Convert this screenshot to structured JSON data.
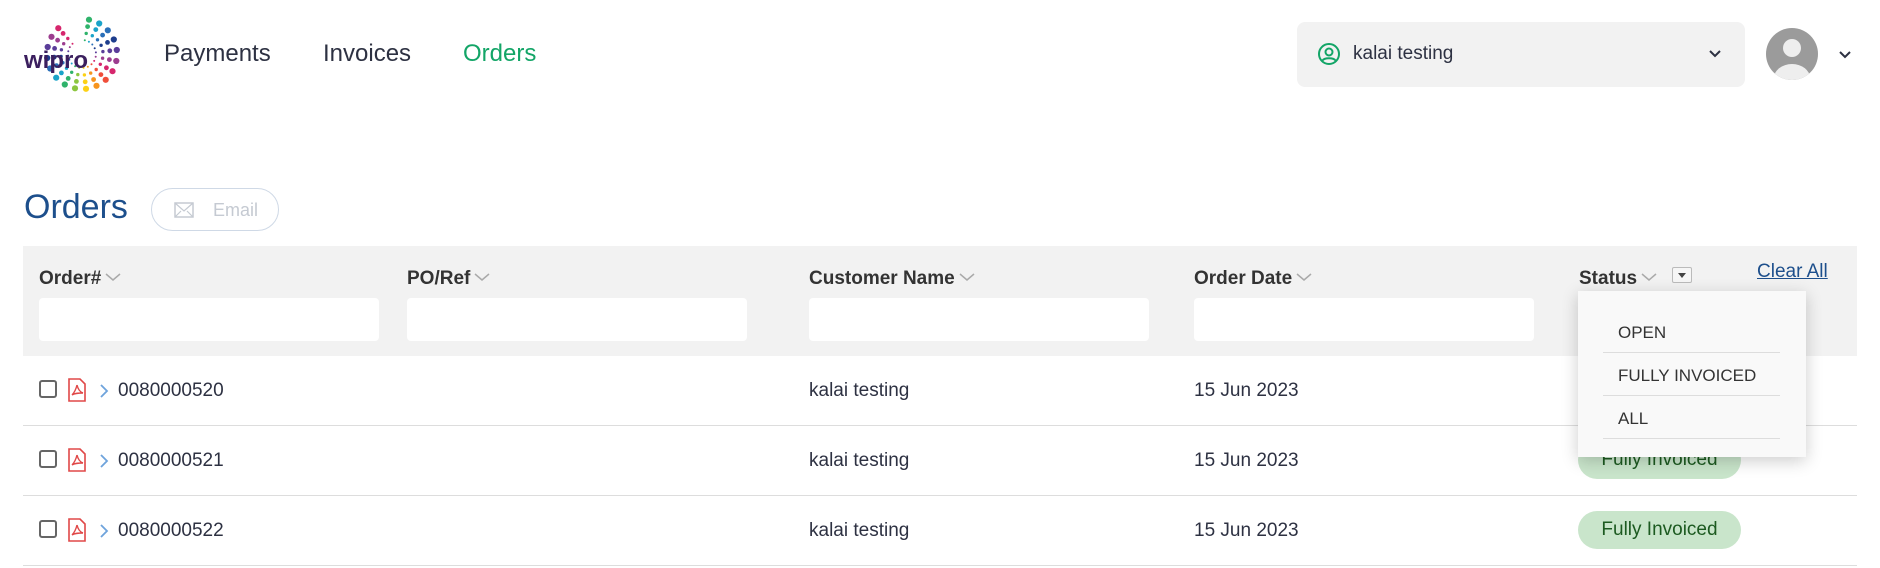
{
  "header": {
    "logo_text": "wipro",
    "nav": [
      {
        "label": "Payments"
      },
      {
        "label": "Invoices"
      },
      {
        "label": "Orders",
        "active": true
      }
    ],
    "account_selector": {
      "value": "kalai testing",
      "icon": "user-circle-icon"
    },
    "avatar": "avatar-placeholder-icon"
  },
  "page": {
    "title": "Orders",
    "email_label": "Email",
    "clear_all": "Clear All"
  },
  "table": {
    "columns": [
      "Order#",
      "PO/Ref",
      "Customer Name",
      "Order Date",
      "Status"
    ],
    "filters": [
      "",
      "",
      "",
      ""
    ],
    "rows": [
      {
        "order": "0080000520",
        "po": "",
        "customer": "kalai testing",
        "date": "15 Jun 2023",
        "status": ""
      },
      {
        "order": "0080000521",
        "po": "",
        "customer": "kalai testing",
        "date": "15 Jun 2023",
        "status": "Fully Invoiced"
      },
      {
        "order": "0080000522",
        "po": "",
        "customer": "kalai testing",
        "date": "15 Jun 2023",
        "status": "Fully Invoiced"
      }
    ]
  },
  "status_menu": {
    "options": [
      "OPEN",
      "FULLY INVOICED",
      "ALL"
    ]
  },
  "colors": {
    "accent": "#13a567",
    "title": "#1d4f8c",
    "badge_bg": "#c9e5cb",
    "badge_text": "#1c5a20",
    "pdf": "#e04848"
  }
}
